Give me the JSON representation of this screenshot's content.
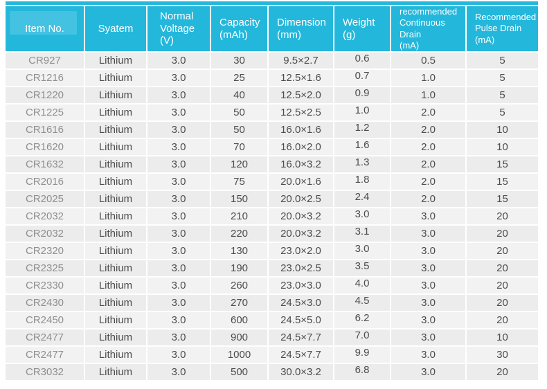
{
  "colors": {
    "header_bg": "#24b7dc",
    "header_highlight": "#43c2e2",
    "row_bg": "#ececec",
    "row_alt_bg": "#f2f2f2",
    "header_text": "#ffffff",
    "item_text": "#8f8f8f",
    "body_text": "#4c4c4c"
  },
  "table": {
    "columns": [
      {
        "key": "item_no",
        "label": "Item No."
      },
      {
        "key": "system",
        "label": "Syatem"
      },
      {
        "key": "voltage",
        "label": "Normal\nVoltage\n(V)"
      },
      {
        "key": "capacity",
        "label": "Capacity\n(mAh)"
      },
      {
        "key": "dimension",
        "label": "Dimension\n(mm)"
      },
      {
        "key": "weight",
        "label": "Weight\n(g)"
      },
      {
        "key": "cont_drain",
        "label": "recommended\nContinuous Drain\n(mA)"
      },
      {
        "key": "pulse_drain",
        "label": "Recommended\nPulse Drain\n(mA)"
      }
    ],
    "rows": [
      [
        "CR927",
        "Lithium",
        "3.0",
        "30",
        "9.5×2.7",
        "0.6",
        "0.5",
        "5"
      ],
      [
        "CR1216",
        "Lithium",
        "3.0",
        "25",
        "12.5×1.6",
        "0.7",
        "1.0",
        "5"
      ],
      [
        "CR1220",
        "Lithium",
        "3.0",
        "40",
        "12.5×2.0",
        "0.9",
        "1.0",
        "5"
      ],
      [
        "CR1225",
        "Lithium",
        "3.0",
        "50",
        "12.5×2.5",
        "1.0",
        "2.0",
        "5"
      ],
      [
        "CR1616",
        "Lithium",
        "3.0",
        "50",
        "16.0×1.6",
        "1.2",
        "2.0",
        "10"
      ],
      [
        "CR1620",
        "Lithium",
        "3.0",
        "70",
        "16.0×2.0",
        "1.6",
        "2.0",
        "10"
      ],
      [
        "CR1632",
        "Lithium",
        "3.0",
        "120",
        "16.0×3.2",
        "1.3",
        "2.0",
        "15"
      ],
      [
        "CR2016",
        "Lithium",
        "3.0",
        "75",
        "20.0×1.6",
        "1.8",
        "2.0",
        "15"
      ],
      [
        "CR2025",
        "Lithium",
        "3.0",
        "150",
        "20.0×2.5",
        "2.4",
        "2.0",
        "15"
      ],
      [
        "CR2032",
        "Lithium",
        "3.0",
        "210",
        "20.0×3.2",
        "3.0",
        "3.0",
        "20"
      ],
      [
        "CR2032",
        "Lithium",
        "3.0",
        "220",
        "20.0×3.2",
        "3.1",
        "3.0",
        "20"
      ],
      [
        "CR2320",
        "Lithium",
        "3.0",
        "130",
        "23.0×2.0",
        "3.0",
        "3.0",
        "20"
      ],
      [
        "CR2325",
        "Lithium",
        "3.0",
        "190",
        "23.0×2.5",
        "3.5",
        "3.0",
        "20"
      ],
      [
        "CR2330",
        "Lithium",
        "3.0",
        "260",
        "23.0×3.0",
        "4.0",
        "3.0",
        "20"
      ],
      [
        "CR2430",
        "Lithium",
        "3.0",
        "270",
        "24.5×3.0",
        "4.5",
        "3.0",
        "20"
      ],
      [
        "CR2450",
        "Lithium",
        "3.0",
        "600",
        "24.5×5.0",
        "6.2",
        "3.0",
        "20"
      ],
      [
        "CR2477",
        "Lithium",
        "3.0",
        "900",
        "24.5×7.7",
        "7.0",
        "3.0",
        "10"
      ],
      [
        "CR2477",
        "Lithium",
        "3.0",
        "1000",
        "24.5×7.7",
        "9.9",
        "3.0",
        "30"
      ],
      [
        "CR3032",
        "Lithium",
        "3.0",
        "500",
        "30.0×3.2",
        "6.8",
        "3.0",
        "20"
      ]
    ]
  }
}
